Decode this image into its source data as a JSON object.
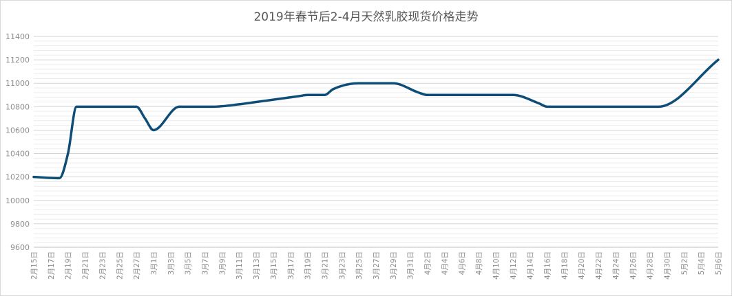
{
  "chart_data": {
    "type": "line",
    "title": "2019年春节后2-4月天然乳胶现货价格走势",
    "xlabel": "",
    "ylabel": "",
    "ylim": [
      9600,
      11400
    ],
    "yticks": [
      9600,
      9800,
      10000,
      10200,
      10400,
      10600,
      10800,
      11000,
      11200,
      11400
    ],
    "grid": true,
    "legend": "none",
    "line_color": "#0e4d77",
    "x_tick_labels": [
      "2月15日",
      "2月17日",
      "2月19日",
      "2月21日",
      "2月23日",
      "2月25日",
      "2月27日",
      "3月1日",
      "3月3日",
      "3月5日",
      "3月7日",
      "3月9日",
      "3月11日",
      "3月13日",
      "3月15日",
      "3月17日",
      "3月19日",
      "3月21日",
      "3月23日",
      "3月25日",
      "3月27日",
      "3月29日",
      "3月31日",
      "4月2日",
      "4月4日",
      "4月6日",
      "4月8日",
      "4月10日",
      "4月12日",
      "4月14日",
      "4月16日",
      "4月18日",
      "4月20日",
      "4月22日",
      "4月24日",
      "4月26日",
      "4月28日",
      "4月30日",
      "5月2日",
      "5月4日",
      "5月6日"
    ],
    "x": [
      "2月15日",
      "2月18日",
      "2月19日",
      "2月20日",
      "2月21日",
      "2月22日",
      "2月25日",
      "2月26日",
      "2月27日",
      "2月28日",
      "3月1日",
      "3月4日",
      "3月5日",
      "3月6日",
      "3月7日",
      "3月8日",
      "3月11日",
      "3月12日",
      "3月13日",
      "3月14日",
      "3月15日",
      "3月18日",
      "3月19日",
      "3月20日",
      "3月21日",
      "3月22日",
      "3月25日",
      "3月26日",
      "3月27日",
      "3月28日",
      "3月29日",
      "4月1日",
      "4月2日",
      "4月3日",
      "4月4日",
      "4月8日",
      "4月9日",
      "4月10日",
      "4月11日",
      "4月12日",
      "4月15日",
      "4月16日",
      "4月17日",
      "4月18日",
      "4月19日",
      "4月22日",
      "4月23日",
      "4月24日",
      "4月25日",
      "4月26日",
      "4月29日",
      "5月6日"
    ],
    "values": [
      10200,
      10190,
      10400,
      10800,
      10800,
      10800,
      10800,
      10800,
      10800,
      10700,
      10600,
      10800,
      10800,
      10800,
      10800,
      10800,
      10820,
      10830,
      10840,
      10850,
      10860,
      10890,
      10900,
      10900,
      10900,
      10950,
      11000,
      11000,
      11000,
      11000,
      11000,
      10920,
      10900,
      10900,
      10900,
      10900,
      10900,
      10900,
      10900,
      10900,
      10830,
      10800,
      10800,
      10800,
      10800,
      10800,
      10800,
      10800,
      10800,
      10800,
      10800,
      11200
    ]
  }
}
